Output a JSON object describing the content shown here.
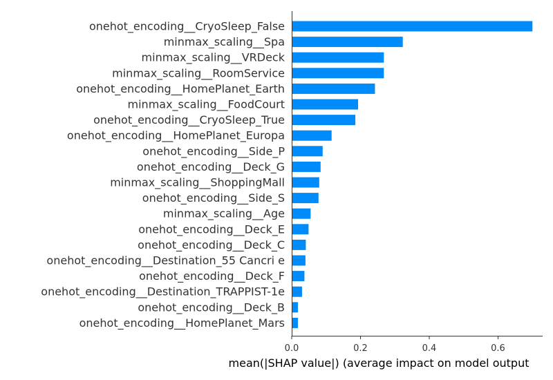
{
  "chart_data": {
    "type": "bar",
    "orientation": "horizontal",
    "title": "",
    "xlabel": "mean(|SHAP value|) (average impact on model output",
    "ylabel": "",
    "xlim": [
      0,
      0.735
    ],
    "xticks": [
      0.0,
      0.2,
      0.4,
      0.6
    ],
    "xtick_labels": [
      "0.0",
      "0.2",
      "0.4",
      "0.6"
    ],
    "grid": false,
    "bar_color": "#008bfb",
    "categories": [
      "onehot_encoding__CryoSleep_False",
      "minmax_scaling__Spa",
      "minmax_scaling__VRDeck",
      "minmax_scaling__RoomService",
      "onehot_encoding__HomePlanet_Earth",
      "minmax_scaling__FoodCourt",
      "onehot_encoding__CryoSleep_True",
      "onehot_encoding__HomePlanet_Europa",
      "onehot_encoding__Side_P",
      "onehot_encoding__Deck_G",
      "minmax_scaling__ShoppingMall",
      "onehot_encoding__Side_S",
      "minmax_scaling__Age",
      "onehot_encoding__Deck_E",
      "onehot_encoding__Deck_C",
      "onehot_encoding__Destination_55 Cancri e",
      "onehot_encoding__Deck_F",
      "onehot_encoding__Destination_TRAPPIST-1e",
      "onehot_encoding__Deck_B",
      "onehot_encoding__HomePlanet_Mars"
    ],
    "values": [
      0.7,
      0.323,
      0.268,
      0.268,
      0.242,
      0.193,
      0.185,
      0.116,
      0.09,
      0.084,
      0.08,
      0.078,
      0.055,
      0.049,
      0.041,
      0.04,
      0.037,
      0.03,
      0.018,
      0.018
    ]
  }
}
